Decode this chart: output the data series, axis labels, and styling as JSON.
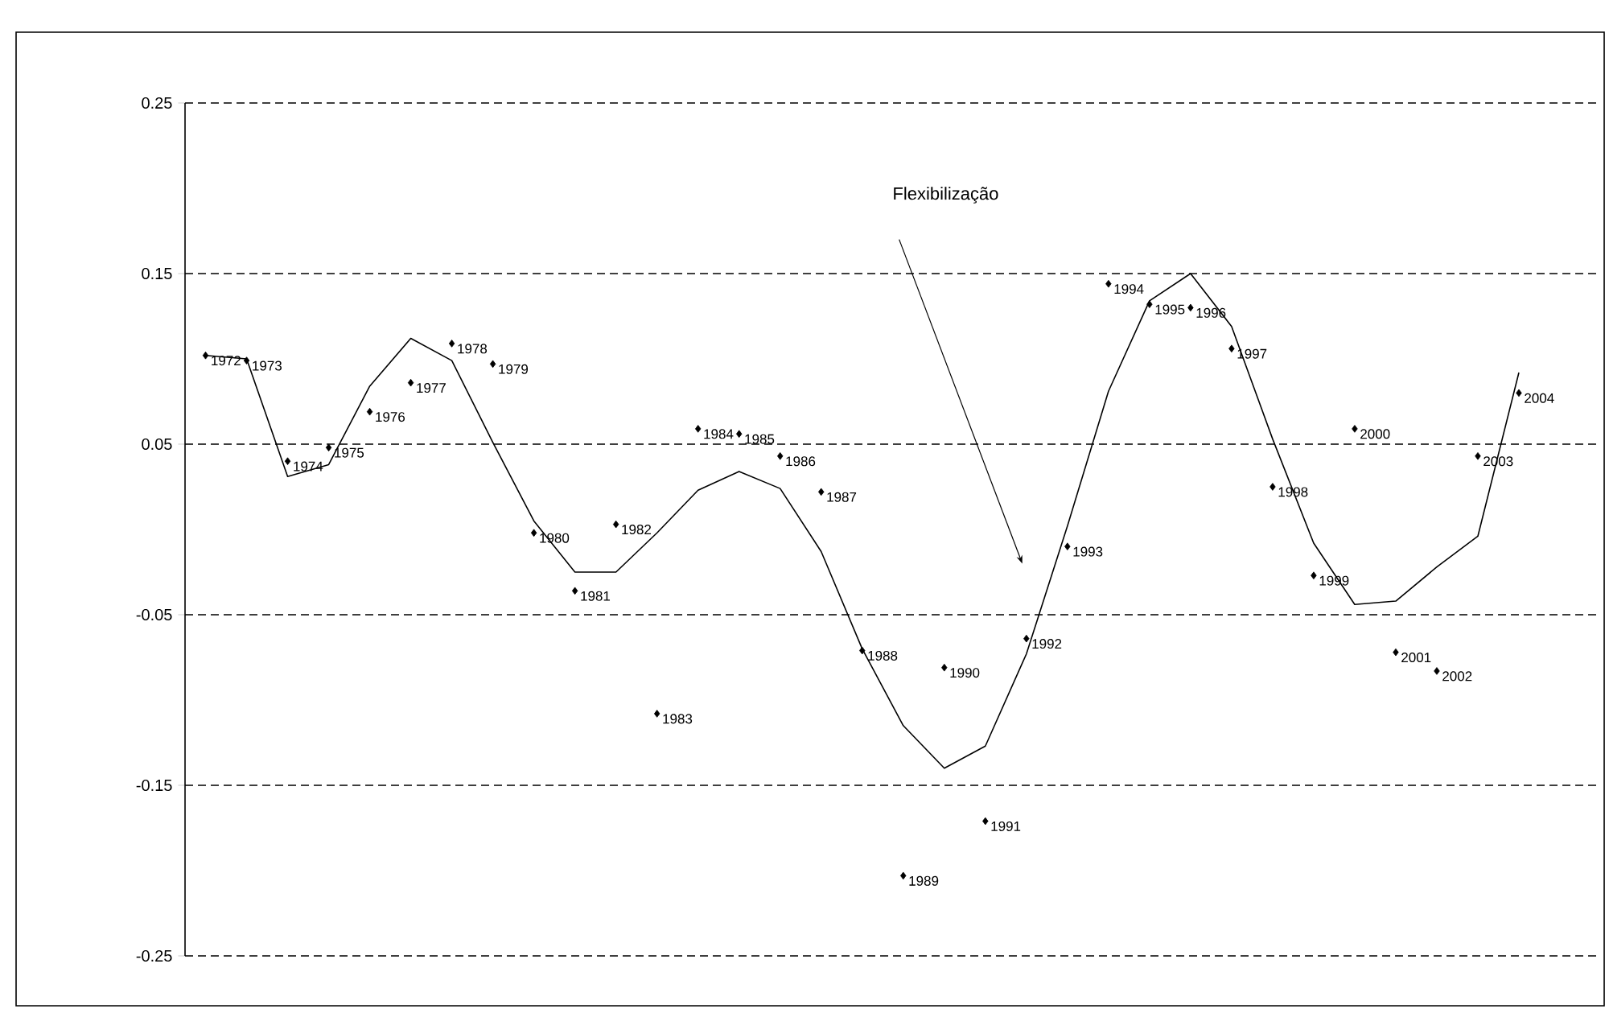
{
  "chart_data": {
    "type": "scatter",
    "categories": [
      null,
      null,
      null,
      null,
      null,
      null,
      null,
      null,
      null,
      null,
      null,
      null,
      null,
      null,
      null,
      null,
      null,
      null,
      null,
      null,
      null,
      null,
      null,
      null,
      null,
      null,
      null,
      null,
      null,
      null,
      null,
      null,
      null
    ],
    "series": [
      {
        "color": "#000000",
        "marker": "diamond",
        "values": [
          0.102,
          0.099,
          0.04,
          0.048,
          0.069,
          0.086,
          0.109,
          0.097,
          -0.002,
          -0.036,
          0.003,
          -0.108,
          0.059,
          0.056,
          0.043,
          0.022,
          -0.071,
          -0.203,
          -0.081,
          -0.171,
          -0.064,
          -0.01,
          0.144,
          0.132,
          0.13,
          0.106,
          0.025,
          -0.027,
          0.059,
          -0.072,
          -0.083,
          0.043,
          0.08
        ]
      },
      {
        "type": "line",
        "color": "#000000",
        "line_style": "solid",
        "marker": "none",
        "values": [
          0.102,
          0.1,
          0.031,
          0.038,
          0.084,
          0.112,
          0.099,
          0.051,
          0.005,
          -0.025,
          -0.025,
          -0.002,
          0.023,
          0.034,
          0.024,
          -0.013,
          -0.07,
          -0.115,
          -0.14,
          -0.127,
          -0.073,
          0.002,
          0.081,
          0.134,
          0.15,
          0.119,
          0.053,
          -0.008,
          -0.044,
          -0.042,
          -0.022,
          -0.004,
          0.092
        ]
      }
    ],
    "ylim": [
      -0.25,
      0.25
    ],
    "yticks": [
      -0.25,
      -0.15,
      -0.05,
      0.05,
      0.15,
      0.25
    ],
    "grid": "y",
    "legend": false,
    "tick_labels": "y",
    "annotations": [
      "Flexibilização",
      "1972",
      "1973",
      "1974",
      "1975",
      "1976",
      "1977",
      "1978",
      "1979",
      "1980",
      "1981",
      "1982",
      "1983",
      "1984",
      "1985",
      "1986",
      "1987",
      "1988",
      "1989",
      "1990",
      "1991",
      "1992",
      "1993",
      "1994",
      "1995",
      "1996",
      "1997",
      "1998",
      "1999",
      "2000",
      "2001",
      "2002",
      "2003",
      "2004"
    ]
  }
}
